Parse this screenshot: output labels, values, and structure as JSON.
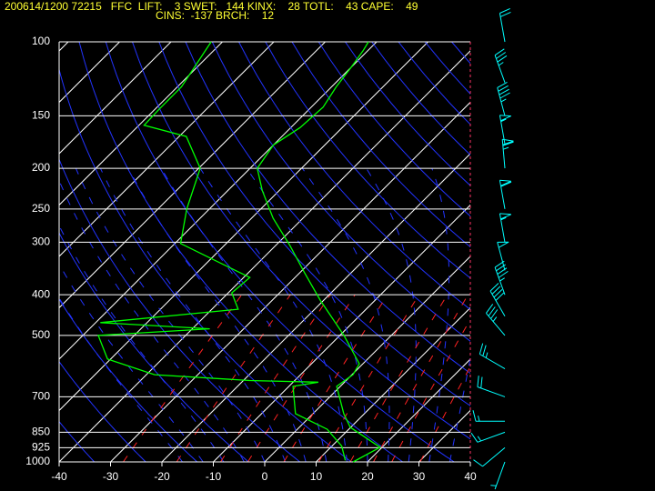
{
  "header": {
    "line1": "200614/1200 72215   FFC  LIFT:    3 SWET:   144 KINX:    28 TOTL:    43 CAPE:    49",
    "line2": "CINS:  -137 BRCH:    12"
  },
  "chart_data": {
    "type": "skewt",
    "xlim": [
      -40,
      40
    ],
    "xticks": [
      -40,
      -30,
      -20,
      -10,
      0,
      10,
      20,
      30,
      40
    ],
    "ylim": [
      1000,
      100
    ],
    "yticks": [
      100,
      150,
      200,
      250,
      300,
      400,
      500,
      700,
      850,
      925,
      1000
    ],
    "log_y": true,
    "grid": true,
    "series": [
      {
        "color": "#00ff00",
        "pressure": [
          1000,
          923,
          827,
          768,
          661,
          620,
          584,
          500,
          412,
          355,
          305,
          263,
          226,
          200,
          176,
          160,
          143,
          128,
          115,
          105,
          100
        ],
        "values": [
          17.2,
          19.6,
          9.9,
          6.0,
          -0.7,
          0.2,
          -0.7,
          -9.2,
          -20.7,
          -29.0,
          -37.3,
          -45.8,
          -53.3,
          -58.6,
          -60.0,
          -58.2,
          -57.7,
          -59.1,
          -60.0,
          -60.9,
          -61.6
        ]
      },
      {
        "color": "#00ff00",
        "pressure": [
          992,
          917,
          836,
          768,
          661,
          646,
          640,
          620,
          569,
          500,
          482,
          466,
          433,
          396,
          364,
          302,
          250,
          200,
          168,
          158,
          145,
          128,
          100
        ],
        "values": [
          15.4,
          11.9,
          5.8,
          -3.4,
          -9.2,
          -5.1,
          -18.8,
          -38.4,
          -50.6,
          -57.0,
          -36.6,
          -59.1,
          -34.9,
          -39.3,
          -38.8,
          -58.9,
          -64.4,
          -69.7,
          -78.6,
          -89.0,
          -89.2,
          -89.2,
          -92.2
        ]
      }
    ],
    "winds": {
      "color": "#00ffff",
      "pressure": [
        1000,
        925,
        850,
        800,
        700,
        600,
        500,
        450,
        400,
        350,
        300,
        250,
        200,
        175,
        150,
        125,
        100
      ],
      "direction": [
        200,
        230,
        250,
        270,
        290,
        300,
        320,
        330,
        340,
        345,
        350,
        350,
        355,
        350,
        345,
        340,
        350
      ],
      "speed": [
        5,
        10,
        15,
        15,
        20,
        25,
        35,
        40,
        45,
        50,
        55,
        60,
        65,
        55,
        45,
        35,
        20
      ]
    }
  }
}
